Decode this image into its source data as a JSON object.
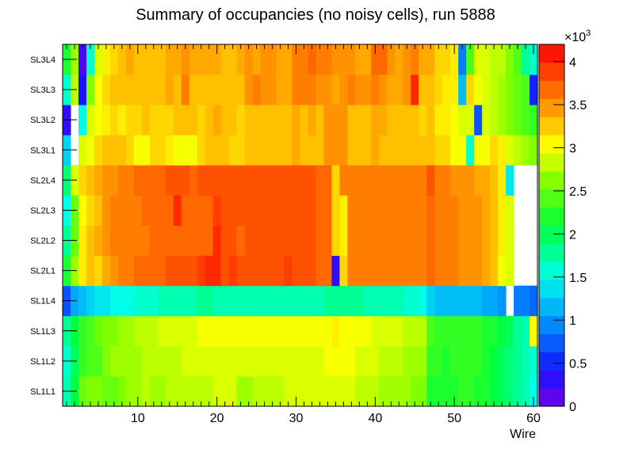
{
  "chart_data": {
    "type": "heatmap",
    "title": "Summary of occupancies (no noisy cells), run 5888",
    "xlabel": "Wire",
    "ylabel": "",
    "x_range": [
      0.5,
      60.5
    ],
    "x_ticks": [
      "10",
      "20",
      "30",
      "40",
      "50",
      "60"
    ],
    "y_categories": [
      "SL1L1",
      "SL1L2",
      "SL1L3",
      "SL1L4",
      "SL2L1",
      "SL2L2",
      "SL2L3",
      "SL2L4",
      "SL3L1",
      "SL3L2",
      "SL3L3",
      "SL3L4"
    ],
    "colorbar": {
      "range": [
        0,
        4200
      ],
      "exponent_label": "×10",
      "exponent_power": "3",
      "ticks": [
        "0",
        "0.5",
        "1",
        "1.5",
        "2",
        "2.5",
        "3",
        "3.5",
        "4"
      ]
    },
    "rows": [
      {
        "label": "SL1L1",
        "values": [
          1700,
          2100,
          2500,
          2600,
          2600,
          2500,
          2500,
          2600,
          2700,
          2700,
          2800,
          2700,
          2700,
          2800,
          2800,
          2800,
          2800,
          2800,
          2800,
          2900,
          2900,
          2900,
          2700,
          2700,
          2800,
          2800,
          2800,
          2800,
          2900,
          2900,
          2900,
          2900,
          2900,
          2900,
          2900,
          2900,
          2900,
          2800,
          2800,
          2800,
          2700,
          2700,
          2700,
          2700,
          2600,
          2600,
          2200,
          2200,
          2200,
          2200,
          2300,
          2300,
          2200,
          2200,
          2100,
          2000,
          1900,
          1800,
          1700,
          1500
        ]
      },
      {
        "label": "SL1L2",
        "values": [
          1600,
          2000,
          2300,
          2400,
          2400,
          2600,
          2700,
          2700,
          2700,
          2700,
          2800,
          2800,
          2800,
          2800,
          2800,
          2900,
          2900,
          2900,
          2900,
          2900,
          2900,
          2900,
          2900,
          2900,
          2900,
          2900,
          2900,
          2900,
          2900,
          2900,
          2900,
          2900,
          2900,
          3000,
          3000,
          3000,
          3000,
          2900,
          2900,
          2900,
          2800,
          2800,
          2800,
          2700,
          2700,
          2700,
          2300,
          2300,
          2200,
          2300,
          2300,
          2300,
          2300,
          2200,
          2100,
          2000,
          1900,
          1800,
          1700,
          1600
        ]
      },
      {
        "label": "SL1L3",
        "values": [
          1800,
          2100,
          2300,
          2400,
          2500,
          2600,
          2600,
          2700,
          2700,
          2800,
          2800,
          2800,
          2900,
          2900,
          2900,
          2900,
          2900,
          3000,
          3000,
          3000,
          3000,
          3000,
          3000,
          3000,
          3000,
          3000,
          3000,
          3000,
          3000,
          3000,
          3000,
          3000,
          3000,
          3000,
          3100,
          3000,
          3000,
          3000,
          3000,
          2900,
          2900,
          2900,
          2900,
          2800,
          2800,
          2800,
          2400,
          2300,
          2300,
          2300,
          2300,
          2300,
          2300,
          2200,
          2200,
          2100,
          2000,
          1800,
          1700,
          3000
        ]
      },
      {
        "label": "SL1L4",
        "values": [
          700,
          1100,
          1200,
          1300,
          1400,
          1400,
          1500,
          1500,
          1500,
          1600,
          1600,
          1600,
          1700,
          1700,
          1700,
          1700,
          1700,
          1800,
          1800,
          1700,
          1700,
          1700,
          1700,
          1700,
          1700,
          1700,
          1700,
          1700,
          1700,
          1700,
          1700,
          1700,
          1700,
          1800,
          1800,
          1800,
          1800,
          1800,
          1700,
          1700,
          1700,
          1700,
          1700,
          1600,
          1600,
          1500,
          1300,
          1200,
          1200,
          1200,
          1200,
          1200,
          1200,
          1100,
          1100,
          1000,
          0,
          900,
          900,
          800
        ]
      },
      {
        "label": "SL2L1",
        "values": [
          2200,
          2700,
          3100,
          3300,
          3200,
          3400,
          3500,
          3600,
          3600,
          3700,
          3700,
          3700,
          3700,
          3800,
          3800,
          3800,
          3800,
          3900,
          4000,
          4000,
          3800,
          3900,
          3800,
          3800,
          3800,
          3800,
          3800,
          3800,
          3900,
          3800,
          3800,
          3800,
          3700,
          3700,
          300,
          3200,
          3600,
          3600,
          3600,
          3600,
          3600,
          3600,
          3600,
          3600,
          3600,
          3600,
          3700,
          3600,
          3600,
          3600,
          3500,
          3500,
          3500,
          3400,
          3300,
          3000,
          2900,
          0,
          0,
          0
        ]
      },
      {
        "label": "SL2L2",
        "values": [
          1800,
          2500,
          3100,
          3300,
          3400,
          3500,
          3600,
          3600,
          3600,
          3600,
          3600,
          3700,
          3700,
          3700,
          3700,
          3700,
          3700,
          3700,
          3700,
          4000,
          3800,
          3800,
          3700,
          3800,
          3800,
          3800,
          3800,
          3800,
          3800,
          3800,
          3800,
          3800,
          3700,
          3700,
          3200,
          3100,
          3600,
          3600,
          3600,
          3600,
          3600,
          3600,
          3600,
          3600,
          3600,
          3600,
          3700,
          3600,
          3600,
          3600,
          3500,
          3500,
          3500,
          3400,
          3300,
          3100,
          2900,
          0,
          0,
          0
        ]
      },
      {
        "label": "SL2L3",
        "values": [
          1500,
          2500,
          3000,
          3200,
          3300,
          3500,
          3600,
          3600,
          3600,
          3600,
          3700,
          3700,
          3700,
          3700,
          4000,
          3700,
          3700,
          3700,
          3700,
          3900,
          3800,
          3800,
          3800,
          3800,
          3800,
          3800,
          3800,
          3800,
          3800,
          3800,
          3800,
          3800,
          3700,
          3700,
          3200,
          3100,
          3600,
          3600,
          3600,
          3600,
          3600,
          3600,
          3600,
          3600,
          3600,
          3600,
          3700,
          3600,
          3600,
          3600,
          3500,
          3500,
          3500,
          3400,
          3300,
          3100,
          2900,
          0,
          0,
          0
        ]
      },
      {
        "label": "SL2L4",
        "values": [
          1900,
          2900,
          3200,
          3300,
          3400,
          3500,
          3500,
          3600,
          3600,
          3700,
          3700,
          3700,
          3700,
          3800,
          3800,
          3800,
          3700,
          3800,
          3800,
          3800,
          3800,
          3800,
          3800,
          3800,
          3800,
          3800,
          3800,
          3800,
          3800,
          3800,
          3800,
          3800,
          3700,
          3700,
          3200,
          3600,
          3600,
          3600,
          3600,
          3600,
          3600,
          3600,
          3600,
          3600,
          3600,
          3600,
          3800,
          3600,
          3600,
          3500,
          3500,
          3500,
          3400,
          3400,
          3300,
          3100,
          1400,
          0,
          0,
          0
        ]
      },
      {
        "label": "SL3L1",
        "values": [
          1300,
          0,
          2900,
          3000,
          3200,
          3300,
          3300,
          3300,
          3200,
          3000,
          3000,
          3200,
          3200,
          3100,
          3000,
          3000,
          3000,
          3200,
          3300,
          3300,
          3300,
          3200,
          3200,
          3300,
          3300,
          3300,
          3300,
          3300,
          3300,
          3400,
          3300,
          3300,
          3300,
          3500,
          3500,
          3500,
          3300,
          3300,
          3300,
          3400,
          3300,
          3300,
          3300,
          3300,
          3300,
          3300,
          3300,
          3200,
          3200,
          3000,
          3000,
          1600,
          3000,
          3000,
          3200,
          3100,
          2900,
          2800,
          2700,
          2600
        ]
      },
      {
        "label": "SL3L2",
        "values": [
          300,
          0,
          1500,
          2900,
          3000,
          3100,
          3200,
          3100,
          3200,
          3200,
          3300,
          3200,
          3200,
          3200,
          3300,
          3300,
          3300,
          3200,
          3300,
          3400,
          3300,
          3300,
          3200,
          3300,
          3300,
          3300,
          3300,
          3300,
          3300,
          3400,
          3300,
          3400,
          3300,
          3500,
          3500,
          3500,
          3300,
          3300,
          3300,
          3400,
          3400,
          3300,
          3300,
          3300,
          3300,
          3200,
          3300,
          3100,
          3100,
          3000,
          2900,
          2900,
          700,
          2900,
          2800,
          2700,
          2600,
          2500,
          2400,
          2300
        ]
      },
      {
        "label": "SL3L3",
        "values": [
          1600,
          2800,
          400,
          2600,
          3000,
          3200,
          3300,
          3300,
          3300,
          3300,
          3300,
          3300,
          3300,
          3400,
          3300,
          3600,
          3300,
          3300,
          3300,
          3300,
          3300,
          3300,
          3300,
          3500,
          3600,
          3500,
          3500,
          3400,
          3400,
          3600,
          3600,
          3600,
          3500,
          3500,
          3400,
          3500,
          3600,
          3500,
          3500,
          3600,
          3500,
          3400,
          3400,
          3500,
          4000,
          3300,
          3300,
          3200,
          3100,
          3100,
          1200,
          3200,
          3000,
          2900,
          2800,
          2700,
          2600,
          2500,
          2400,
          500
        ]
      },
      {
        "label": "SL3L4",
        "values": [
          2200,
          2700,
          200,
          1600,
          2900,
          3100,
          3200,
          3300,
          3400,
          3300,
          3300,
          3300,
          3300,
          3400,
          3400,
          3500,
          3400,
          3400,
          3400,
          3400,
          3300,
          3300,
          3400,
          3500,
          3400,
          3500,
          3500,
          3400,
          3400,
          3600,
          3600,
          3700,
          3600,
          3600,
          3500,
          3500,
          3500,
          3400,
          3400,
          3700,
          3700,
          3500,
          3400,
          3500,
          3600,
          3400,
          3400,
          3200,
          3200,
          3100,
          900,
          2400,
          2900,
          2900,
          2800,
          2800,
          2600,
          2400,
          1800,
          1600
        ]
      }
    ]
  }
}
